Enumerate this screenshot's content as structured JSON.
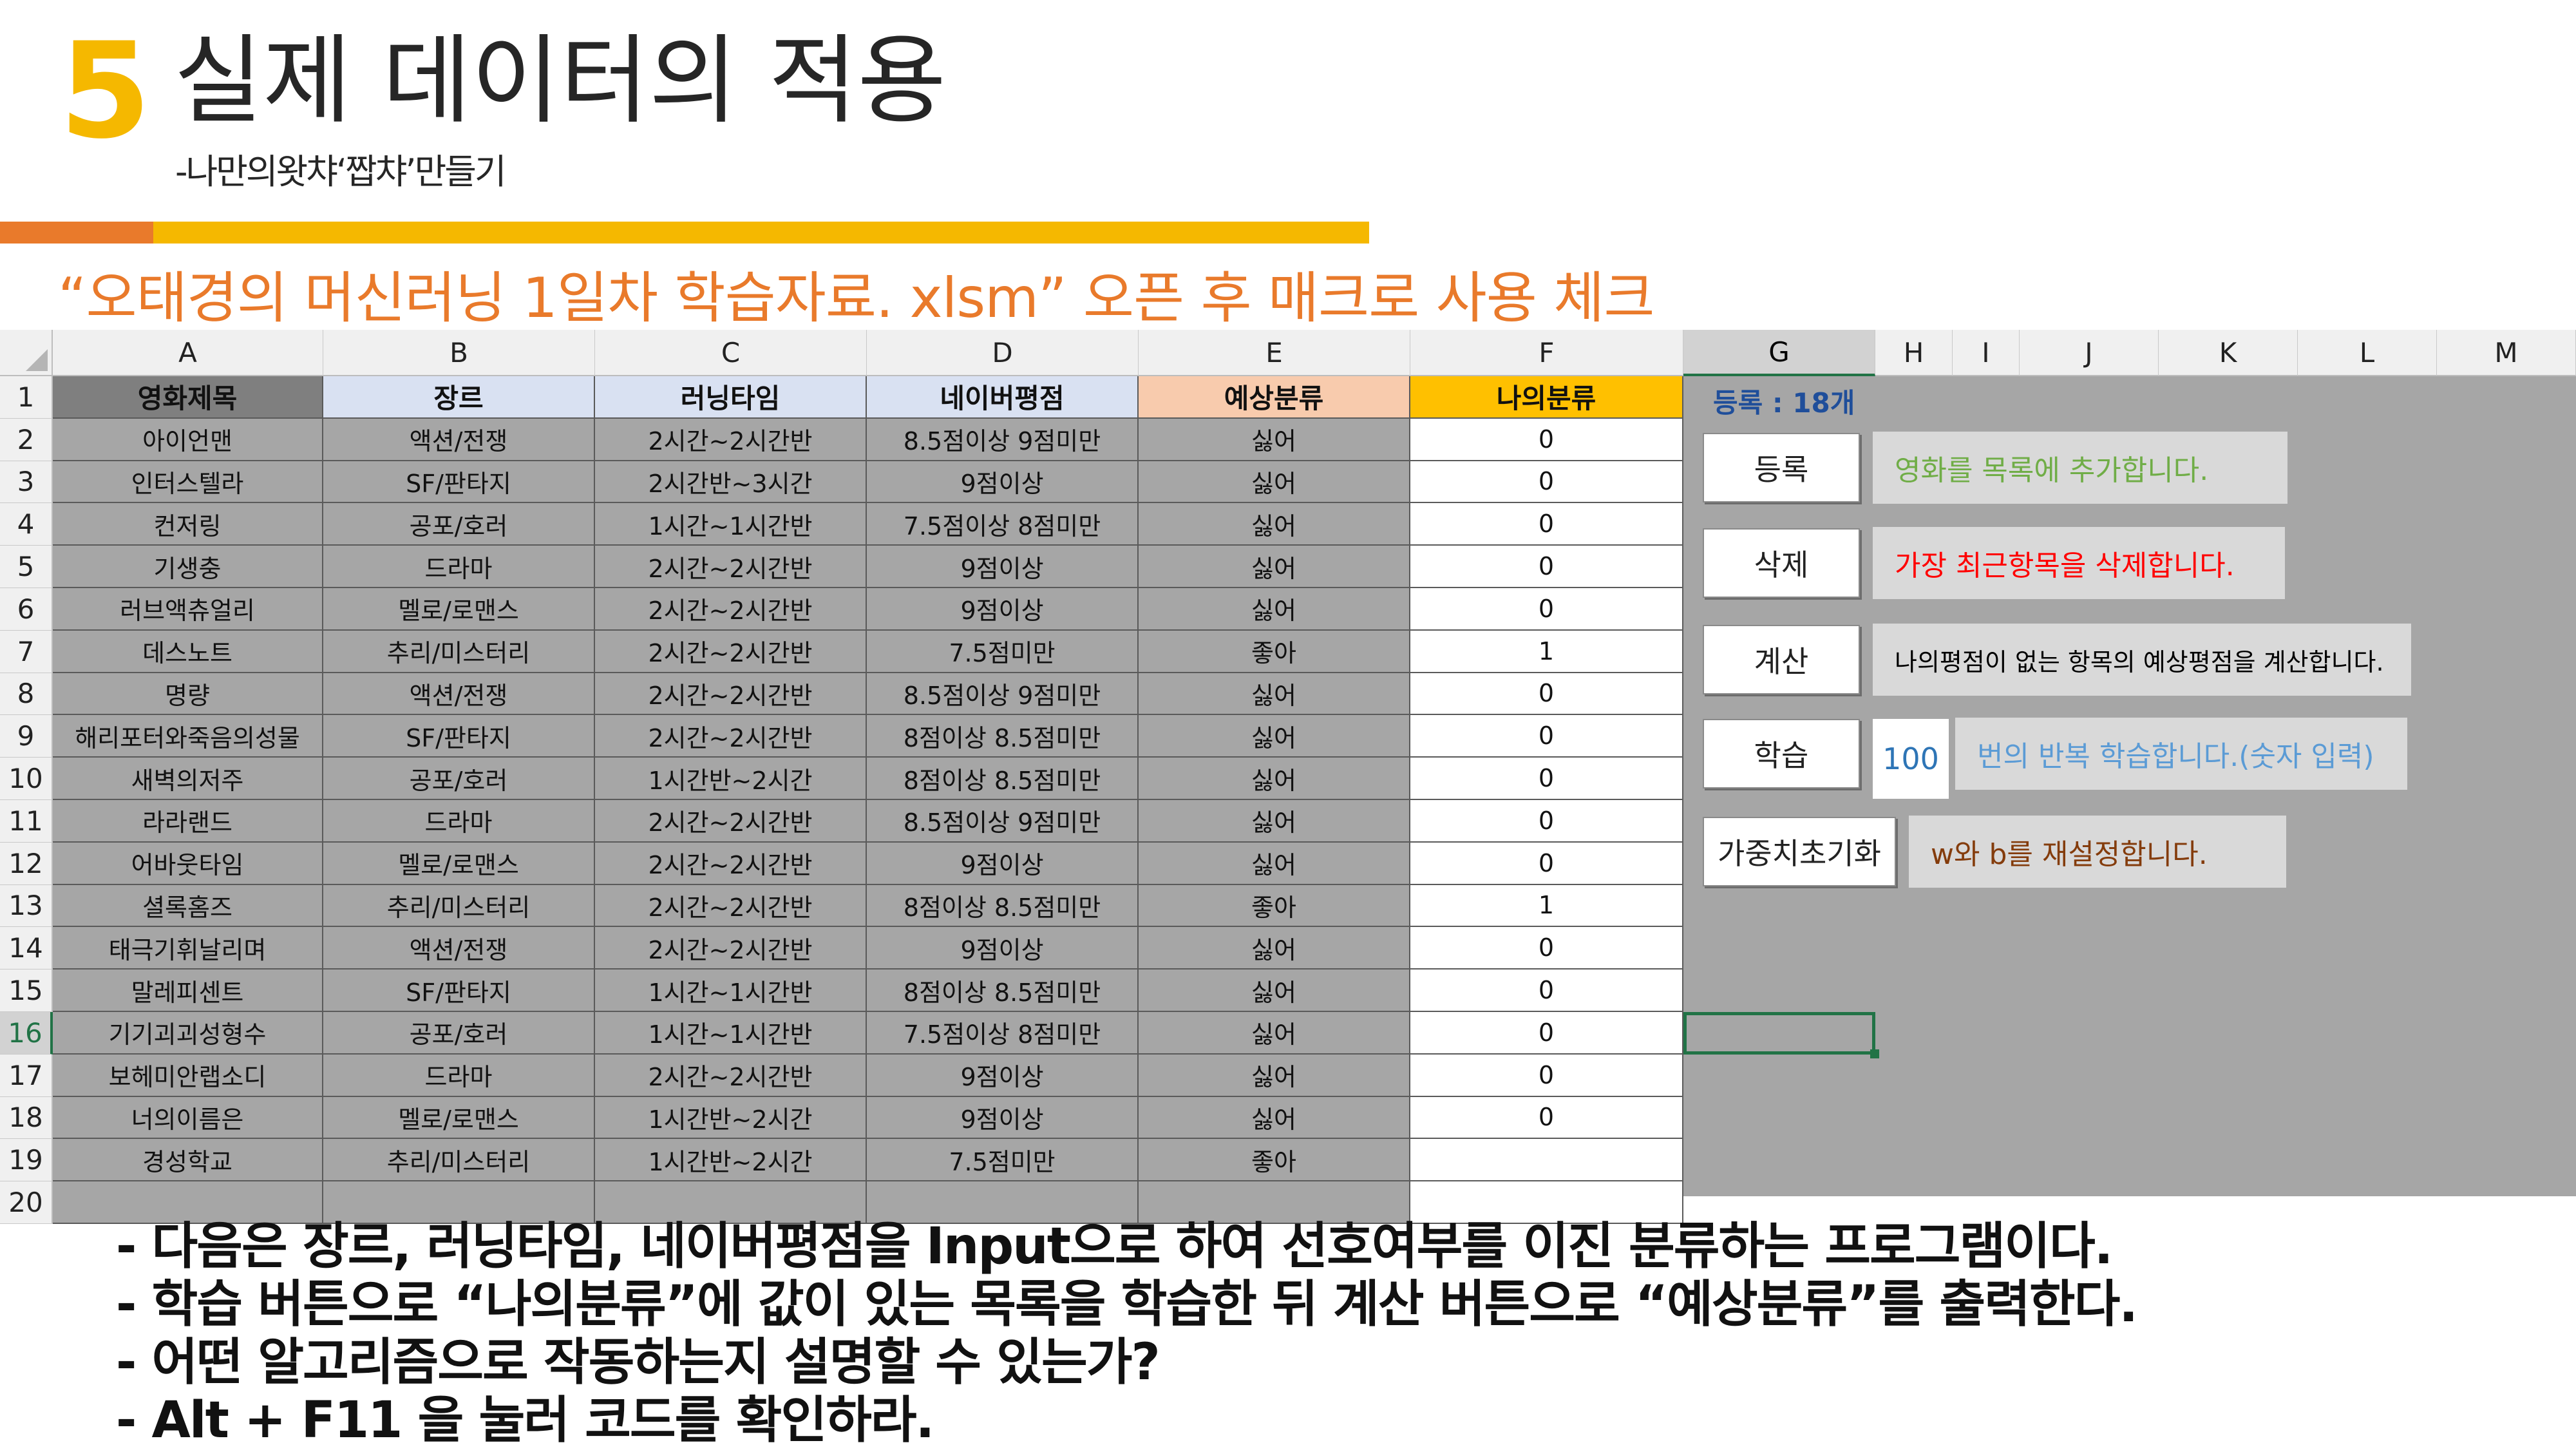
{
  "header": {
    "slide_number": "5",
    "title": "실제 데이터의 적용",
    "subtitle": "-나만의왓챠‘짭챠’만들기",
    "instruction": "“오태경의 머신러닝 1일차 학습자료. xlsm”  오픈 후 매크로 사용 체크"
  },
  "sheet": {
    "columns": [
      "A",
      "B",
      "C",
      "D",
      "E",
      "F",
      "G",
      "H",
      "I",
      "J",
      "K",
      "L",
      "M"
    ],
    "selected_column": "G",
    "selected_row": "16",
    "row_numbers": [
      "1",
      "2",
      "3",
      "4",
      "5",
      "6",
      "7",
      "8",
      "9",
      "10",
      "11",
      "12",
      "13",
      "14",
      "15",
      "16",
      "17",
      "18",
      "19",
      "20"
    ],
    "table_headers": [
      "영화제목",
      "장르",
      "러닝타임",
      "네이버평점",
      "예상분류",
      "나의분류"
    ],
    "header_colors": [
      "#7F7F7F",
      "#D9E1F2",
      "#D9E1F2",
      "#D9E1F2",
      "#F8CBAD",
      "#FFC000"
    ],
    "rows": [
      [
        "아이언맨",
        "액션/전쟁",
        "2시간~2시간반",
        "8.5점이상 9점미만",
        "싫어",
        "0"
      ],
      [
        "인터스텔라",
        "SF/판타지",
        "2시간반~3시간",
        "9점이상",
        "싫어",
        "0"
      ],
      [
        "컨저링",
        "공포/호러",
        "1시간~1시간반",
        "7.5점이상 8점미만",
        "싫어",
        "0"
      ],
      [
        "기생충",
        "드라마",
        "2시간~2시간반",
        "9점이상",
        "싫어",
        "0"
      ],
      [
        "러브액츄얼리",
        "멜로/로맨스",
        "2시간~2시간반",
        "9점이상",
        "싫어",
        "0"
      ],
      [
        "데스노트",
        "추리/미스터리",
        "2시간~2시간반",
        "7.5점미만",
        "좋아",
        "1"
      ],
      [
        "명량",
        "액션/전쟁",
        "2시간~2시간반",
        "8.5점이상 9점미만",
        "싫어",
        "0"
      ],
      [
        "해리포터와죽음의성물",
        "SF/판타지",
        "2시간~2시간반",
        "8점이상 8.5점미만",
        "싫어",
        "0"
      ],
      [
        "새벽의저주",
        "공포/호러",
        "1시간반~2시간",
        "8점이상 8.5점미만",
        "싫어",
        "0"
      ],
      [
        "라라랜드",
        "드라마",
        "2시간~2시간반",
        "8.5점이상 9점미만",
        "싫어",
        "0"
      ],
      [
        "어바웃타임",
        "멜로/로맨스",
        "2시간~2시간반",
        "9점이상",
        "싫어",
        "0"
      ],
      [
        "셜록홈즈",
        "추리/미스터리",
        "2시간~2시간반",
        "8점이상 8.5점미만",
        "좋아",
        "1"
      ],
      [
        "태극기휘날리며",
        "액션/전쟁",
        "2시간~2시간반",
        "9점이상",
        "싫어",
        "0"
      ],
      [
        "말레피센트",
        "SF/판타지",
        "1시간~1시간반",
        "8점이상 8.5점미만",
        "싫어",
        "0"
      ],
      [
        "기기괴괴성형수",
        "공포/호러",
        "1시간~1시간반",
        "7.5점이상 8점미만",
        "싫어",
        "0"
      ],
      [
        "보헤미안랩소디",
        "드라마",
        "2시간~2시간반",
        "9점이상",
        "싫어",
        "0"
      ],
      [
        "너의이름은",
        "멜로/로맨스",
        "1시간반~2시간",
        "9점이상",
        "싫어",
        "0"
      ],
      [
        "경성학교",
        "추리/미스터리",
        "1시간반~2시간",
        "7.5점미만",
        "좋아",
        ""
      ]
    ]
  },
  "panel": {
    "count_label": "등록 : 18개",
    "buttons": [
      {
        "label": "등록",
        "note": "영화를 목록에 추가합니다.",
        "note_color": "#70AD47"
      },
      {
        "label": "삭제",
        "note": "가장 최근항목을 삭제합니다.",
        "note_color": "#FF0000"
      },
      {
        "label": "계산",
        "note": "나의평점이 없는 항목의 예상평점을 계산합니다.",
        "note_color": "#000000"
      },
      {
        "label": "학습",
        "note": "번의 반복 학습합니다.(숫자 입력)",
        "note_color": "#5B9BD5"
      },
      {
        "label": "가중치초기화",
        "note": "w와 b를 재설정합니다.",
        "note_color": "#843C0C"
      }
    ],
    "epoch_value": "100"
  },
  "bullets": [
    "- 다음은 장르, 러닝타임, 네이버평점을 Input으로 하여 선호여부를 이진 분류하는 프로그램이다.",
    "- 학습 버튼으로 “나의분류”에 값이 있는 목록을 학습한 뒤 계산 버튼으로  “예상분류”를 출력한다.",
    "- 어떤 알고리즘으로 작동하는지 설명할 수 있는가?",
    "- Alt + F11 을 눌러 코드를 확인하라."
  ]
}
